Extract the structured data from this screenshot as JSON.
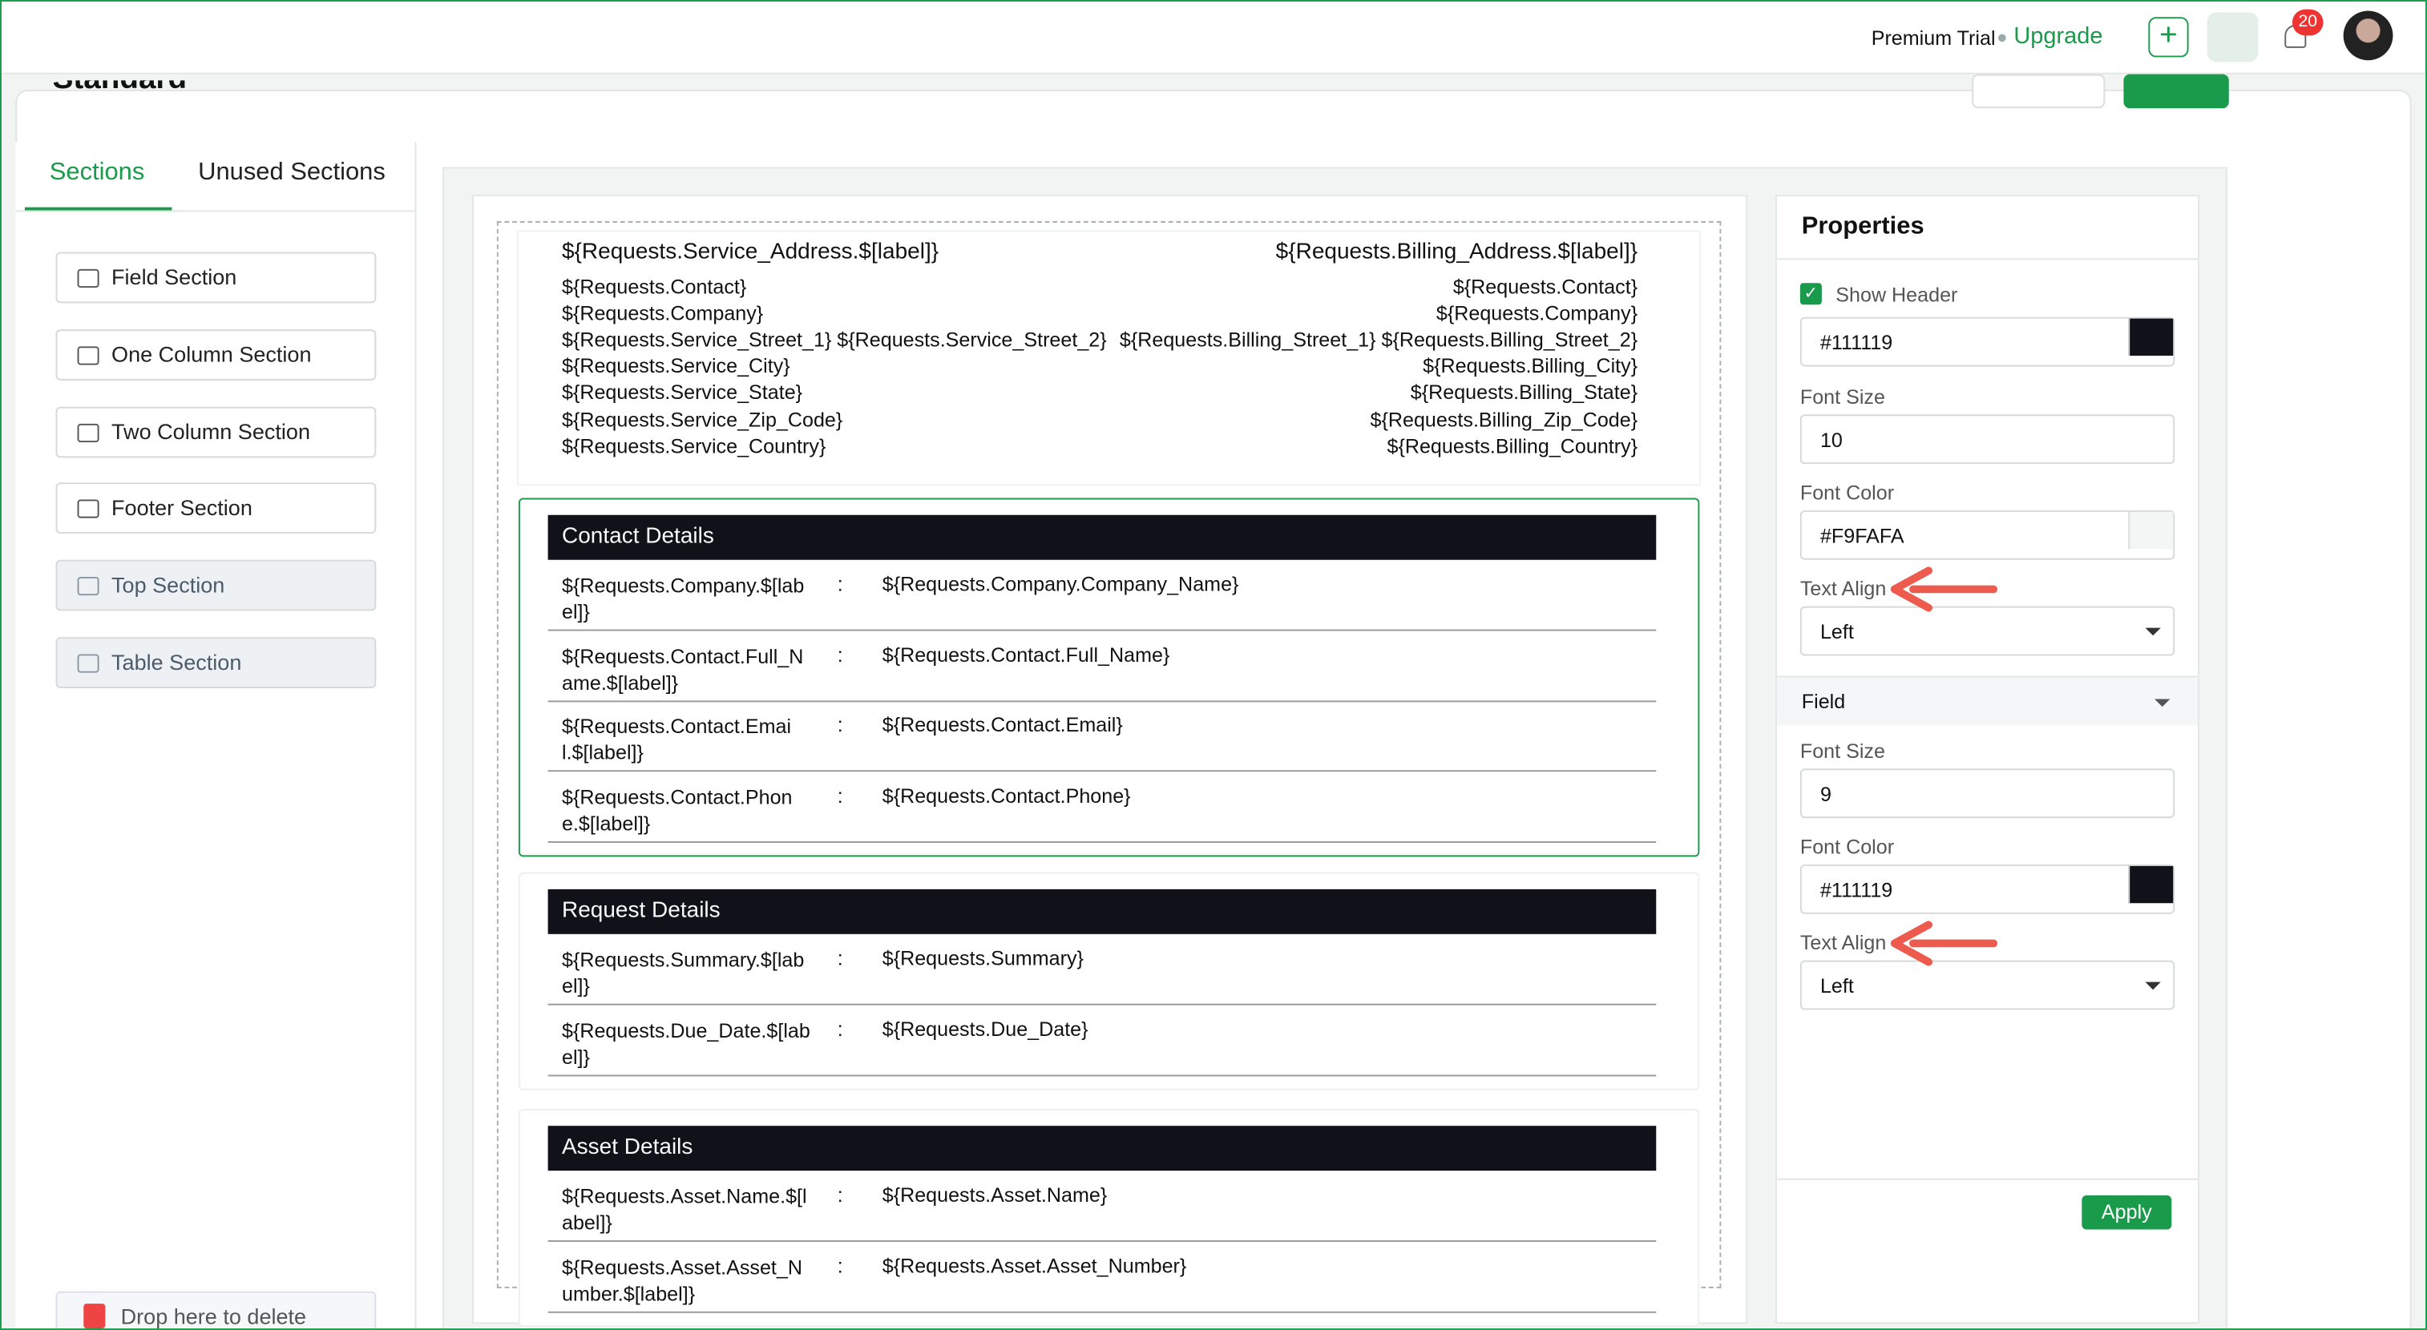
{
  "header": {
    "plan": "Premium Trial",
    "upgrade": "Upgrade",
    "notifications": "20"
  },
  "page_title": "Standard",
  "tabs": [
    "Sections",
    "Unused Sections"
  ],
  "section_types": [
    "Field Section",
    "One Column Section",
    "Two Column Section",
    "Footer Section",
    "Top Section",
    "Table Section"
  ],
  "delete_zone": "Drop here to delete",
  "address": {
    "left_title": "${Requests.Service_Address.$[label]}",
    "right_title": "${Requests.Billing_Address.$[label]}",
    "left": [
      "${Requests.Contact}",
      "${Requests.Company}",
      "${Requests.Service_Street_1} ${Requests.Service_Street_2}",
      "${Requests.Service_City}",
      "${Requests.Service_State}",
      "${Requests.Service_Zip_Code}",
      "${Requests.Service_Country}"
    ],
    "right": [
      "${Requests.Contact}",
      "${Requests.Company}",
      "${Requests.Billing_Street_1} ${Requests.Billing_Street_2}",
      "${Requests.Billing_City}",
      "${Requests.Billing_State}",
      "${Requests.Billing_Zip_Code}",
      "${Requests.Billing_Country}"
    ]
  },
  "separator": ":",
  "blocks": [
    {
      "title": "Contact Details",
      "rows": [
        [
          "${Requests.Company.$[label]}",
          "${Requests.Company.Company_Name}"
        ],
        [
          "${Requests.Contact.Full_Name.$[label]}",
          "${Requests.Contact.Full_Name}"
        ],
        [
          "${Requests.Contact.Email.$[label]}",
          "${Requests.Contact.Email}"
        ],
        [
          "${Requests.Contact.Phone.$[label]}",
          "${Requests.Contact.Phone}"
        ]
      ]
    },
    {
      "title": "Request Details",
      "rows": [
        [
          "${Requests.Summary.$[label]}",
          "${Requests.Summary}"
        ],
        [
          "${Requests.Due_Date.$[label]}",
          "${Requests.Due_Date}"
        ]
      ]
    },
    {
      "title": "Asset Details",
      "rows": [
        [
          "${Requests.Asset.Name.$[label]}",
          "${Requests.Asset.Name}"
        ],
        [
          "${Requests.Asset.Asset_Number.$[label]}",
          "${Requests.Asset.Asset_Number}"
        ]
      ]
    }
  ],
  "properties": {
    "title": "Properties",
    "show_header": "Show Header",
    "header_color": "#111119",
    "header_fields": [
      {
        "label": "Font Size",
        "value": "10"
      },
      {
        "label": "Font Color",
        "value": "#F9FAFA"
      },
      {
        "label": "Text Align",
        "value": "Left"
      }
    ],
    "field_title": "Field",
    "field_fields": [
      {
        "label": "Font Size",
        "value": "9"
      },
      {
        "label": "Font Color",
        "value": "#111119"
      },
      {
        "label": "Text Align",
        "value": "Left"
      }
    ],
    "apply": "Apply"
  }
}
